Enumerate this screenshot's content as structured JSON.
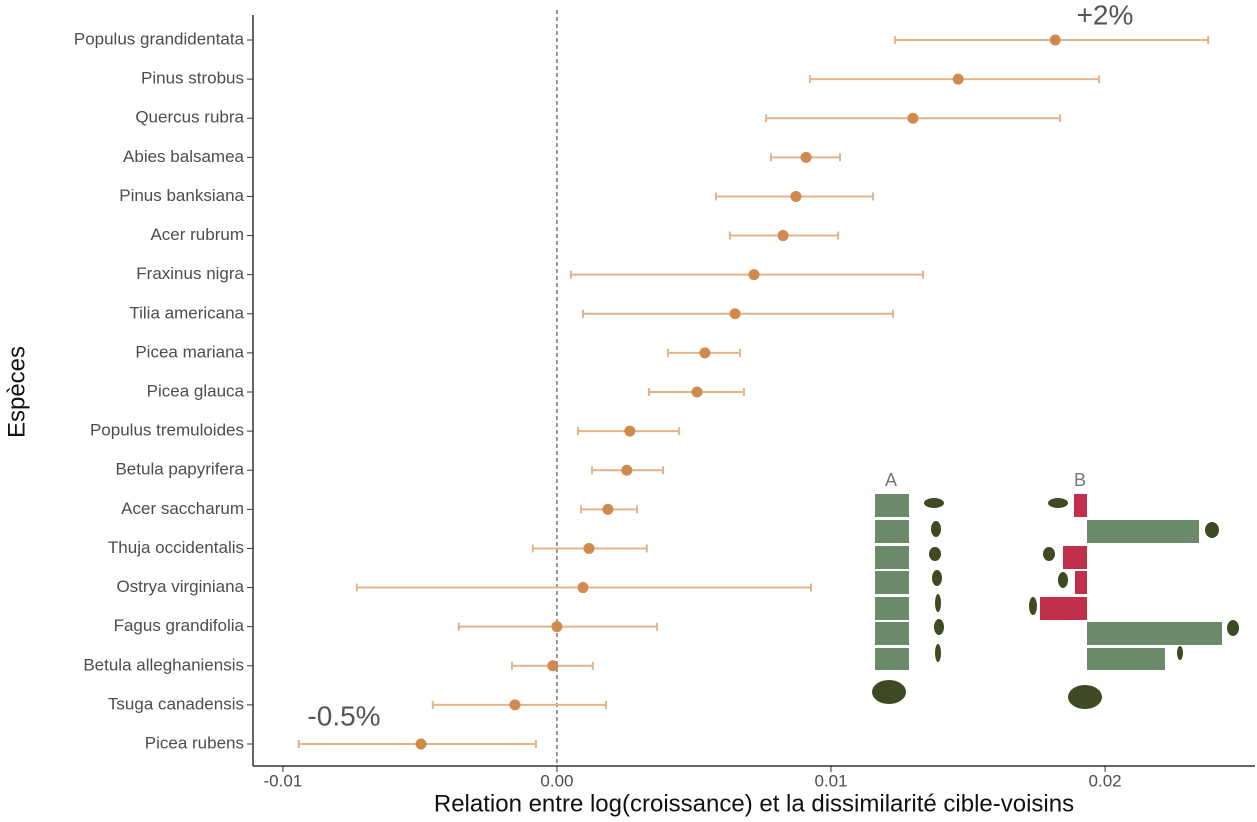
{
  "chart_data": {
    "type": "errorbar",
    "x_label": "Relation entre log(croissance) et la dissimilarité cible-voisins",
    "y_label": "Espèces",
    "categories": [
      "Populus grandidentata",
      "Pinus strobus",
      "Quercus rubra",
      "Abies balsamea",
      "Pinus banksiana",
      "Acer rubrum",
      "Fraxinus nigra",
      "Tilia americana",
      "Picea mariana",
      "Picea glauca",
      "Populus tremuloides",
      "Betula papyrifera",
      "Acer saccharum",
      "Thuja occidentalis",
      "Ostrya virginiana",
      "Fagus grandifolia",
      "Betula alleghaniensis",
      "Tsuga canadensis",
      "Picea rubens"
    ],
    "values": [
      0.01818,
      0.01464,
      0.01299,
      0.00909,
      0.00872,
      0.00825,
      0.00719,
      0.0065,
      0.0054,
      0.00511,
      0.00266,
      0.00255,
      0.00186,
      0.00117,
      0.00095,
      0.0,
      -0.00015,
      -0.00153,
      -0.00496
    ],
    "lower": [
      0.01234,
      0.00923,
      0.00763,
      0.00781,
      0.0058,
      0.00631,
      0.00051,
      0.00095,
      0.00405,
      0.00336,
      0.00077,
      0.00128,
      0.00088,
      -0.00088,
      -0.0073,
      -0.00358,
      -0.00164,
      -0.00453,
      -0.00942
    ],
    "upper": [
      0.02376,
      0.01978,
      0.01836,
      0.01033,
      0.01153,
      0.01026,
      0.01336,
      0.01226,
      0.00668,
      0.00682,
      0.00445,
      0.00387,
      0.00292,
      0.00328,
      0.00927,
      0.00365,
      0.00131,
      0.00179,
      -0.00077
    ],
    "color": "#d08a50",
    "bar_color": "#e3b48c",
    "xlim": [
      -0.01109,
      0.02547
    ],
    "xticks": [
      -0.01,
      {
        "value": 0,
        "label": "0.00"
      },
      0.01,
      0.02
    ],
    "reference_x": 0,
    "annotations": [
      "+2%",
      "-0.5%"
    ],
    "inset_labels": [
      "A",
      "B"
    ]
  }
}
